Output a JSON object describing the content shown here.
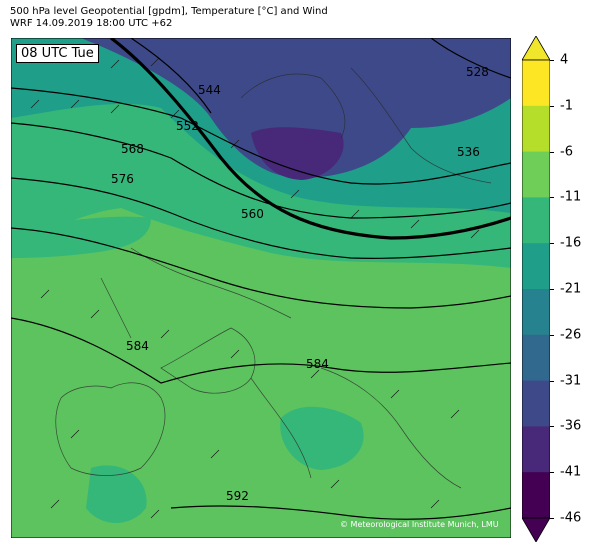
{
  "header": {
    "title_line1": "500 hPa level Geopotential [gpdm], Temperature [°C] and Wind",
    "title_line2": "WRF 14.09.2019 18:00 UTC +62"
  },
  "map": {
    "time_label": "08 UTC Tue",
    "credit": "© Meteorological Institute Munich, LMU",
    "contour_labels": [
      "528",
      "536",
      "544",
      "552",
      "560",
      "568",
      "576",
      "584",
      "584",
      "592"
    ]
  },
  "colorbar": {
    "labels": [
      "4",
      "-1",
      "-6",
      "-11",
      "-16",
      "-21",
      "-26",
      "-31",
      "-36",
      "-41",
      "-46"
    ],
    "colors": [
      "#fde725",
      "#b5de2b",
      "#6ece58",
      "#35b779",
      "#1f9e89",
      "#26828e",
      "#31688e",
      "#3e4989",
      "#482878",
      "#440154"
    ],
    "top_color": "#f0e62c",
    "bottom_color": "#440154"
  },
  "colors": {
    "warm": "#5dc35f",
    "mid": "#35b779",
    "cool": "#1f9e89",
    "cold": "#3e4989",
    "colder": "#482878"
  }
}
